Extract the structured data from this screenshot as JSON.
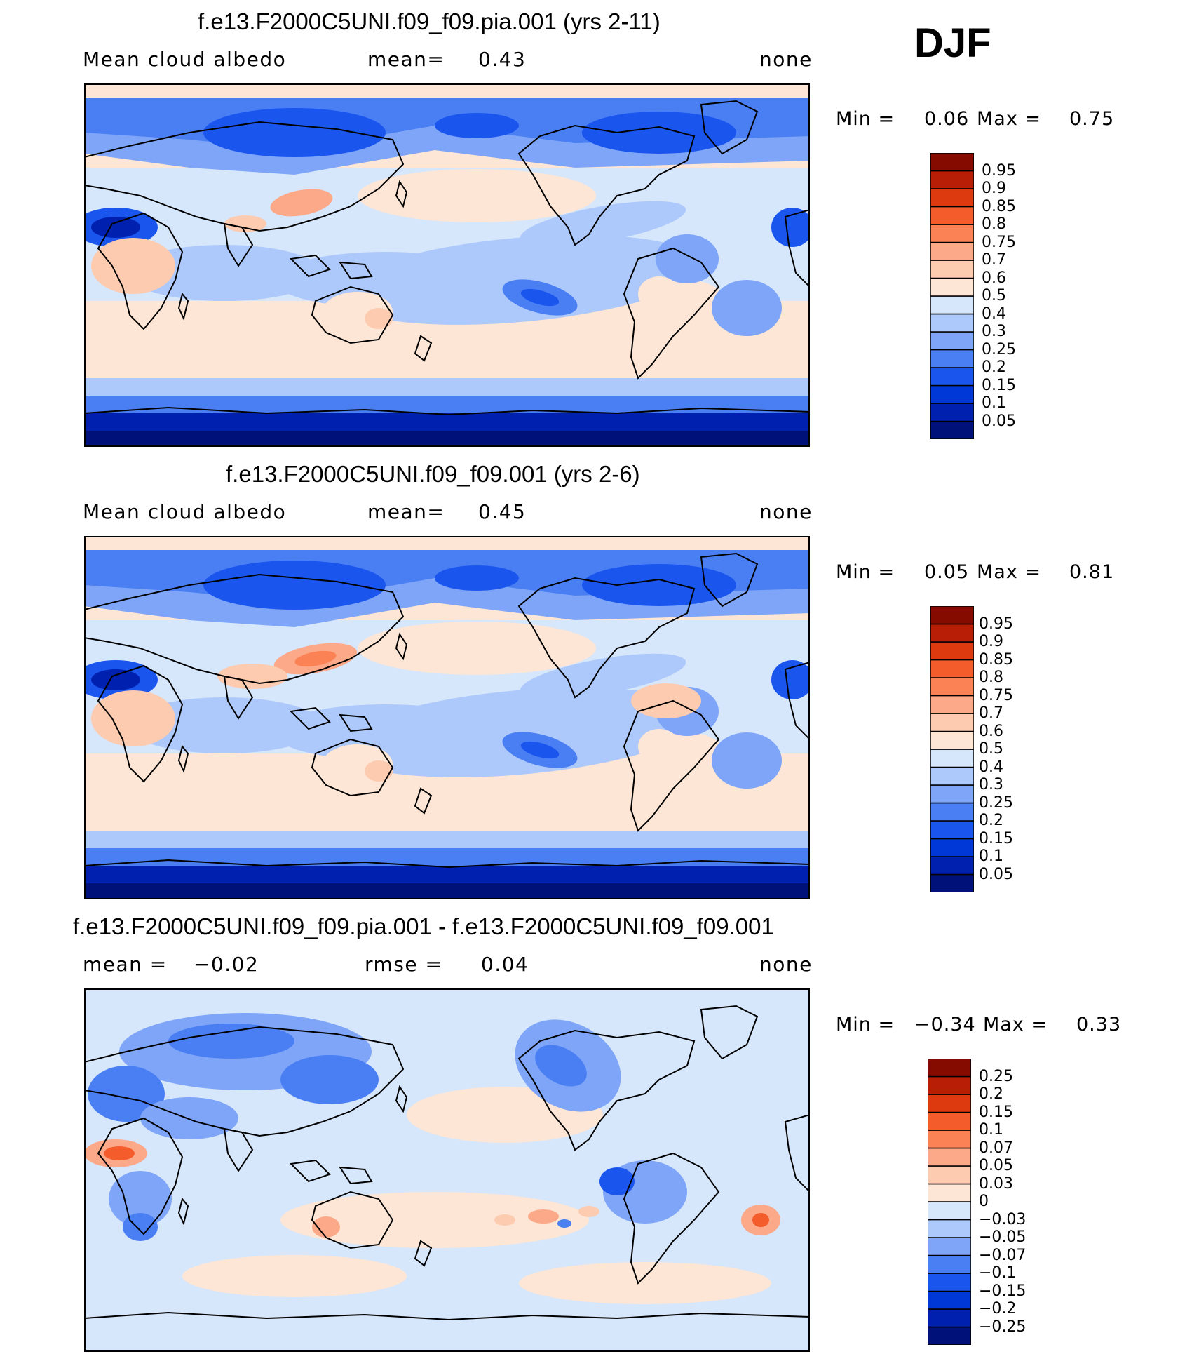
{
  "season": "DJF",
  "panels": [
    {
      "title": "f.e13.F2000C5UNI.f09_f09.pia.001 (yrs 2-11)",
      "left_label": "Mean  cloud  albedo",
      "center_label": "mean=",
      "center_value": "0.43",
      "right_label": "none",
      "min_label": "Min  =",
      "min_value": "0.06",
      "max_label": "Max  =",
      "max_value": "0.75",
      "colorbar": {
        "colors": [
          "#00127a",
          "#0021b0",
          "#0038d8",
          "#1a55ee",
          "#4a7ff4",
          "#7ea5f7",
          "#adc8fa",
          "#d6e6fb",
          "#fde6d5",
          "#fdcbb0",
          "#fca98a",
          "#fb8255",
          "#f55c2b",
          "#de3a0f",
          "#b81e06",
          "#850b00"
        ],
        "labels": [
          "0.05",
          "0.1",
          "0.15",
          "0.2",
          "0.25",
          "0.3",
          "0.4",
          "0.5",
          "0.6",
          "0.7",
          "0.75",
          "0.8",
          "0.85",
          "0.9",
          "0.95"
        ]
      }
    },
    {
      "title": "f.e13.F2000C5UNI.f09_f09.001 (yrs 2-6)",
      "left_label": "Mean  cloud  albedo",
      "center_label": "mean=",
      "center_value": "0.45",
      "right_label": "none",
      "min_label": "Min  =",
      "min_value": "0.05",
      "max_label": "Max  =",
      "max_value": "0.81",
      "colorbar": {
        "colors": [
          "#00127a",
          "#0021b0",
          "#0038d8",
          "#1a55ee",
          "#4a7ff4",
          "#7ea5f7",
          "#adc8fa",
          "#d6e6fb",
          "#fde6d5",
          "#fdcbb0",
          "#fca98a",
          "#fb8255",
          "#f55c2b",
          "#de3a0f",
          "#b81e06",
          "#850b00"
        ],
        "labels": [
          "0.05",
          "0.1",
          "0.15",
          "0.2",
          "0.25",
          "0.3",
          "0.4",
          "0.5",
          "0.6",
          "0.7",
          "0.75",
          "0.8",
          "0.85",
          "0.9",
          "0.95"
        ]
      }
    },
    {
      "title": "f.e13.F2000C5UNI.f09_f09.pia.001 - f.e13.F2000C5UNI.f09_f09.001",
      "left_label": "mean  =",
      "left_value": "−0.02",
      "center_label": "rmse  =",
      "center_value": "0.04",
      "right_label": "none",
      "min_label": "Min  =",
      "min_value": "−0.34",
      "max_label": "Max  =",
      "max_value": "0.33",
      "colorbar": {
        "colors": [
          "#00127a",
          "#0021b0",
          "#0038d8",
          "#1a55ee",
          "#4a7ff4",
          "#7ea5f7",
          "#adc8fa",
          "#d6e6fb",
          "#fde6d5",
          "#fdcbb0",
          "#fca98a",
          "#fb8255",
          "#f55c2b",
          "#de3a0f",
          "#b81e06",
          "#850b00"
        ],
        "labels": [
          "−0.25",
          "−0.2",
          "−0.15",
          "−0.1",
          "−0.07",
          "−0.05",
          "−0.03",
          "0",
          "0.03",
          "0.05",
          "0.07",
          "0.1",
          "0.15",
          "0.2",
          "0.25"
        ]
      }
    }
  ]
}
